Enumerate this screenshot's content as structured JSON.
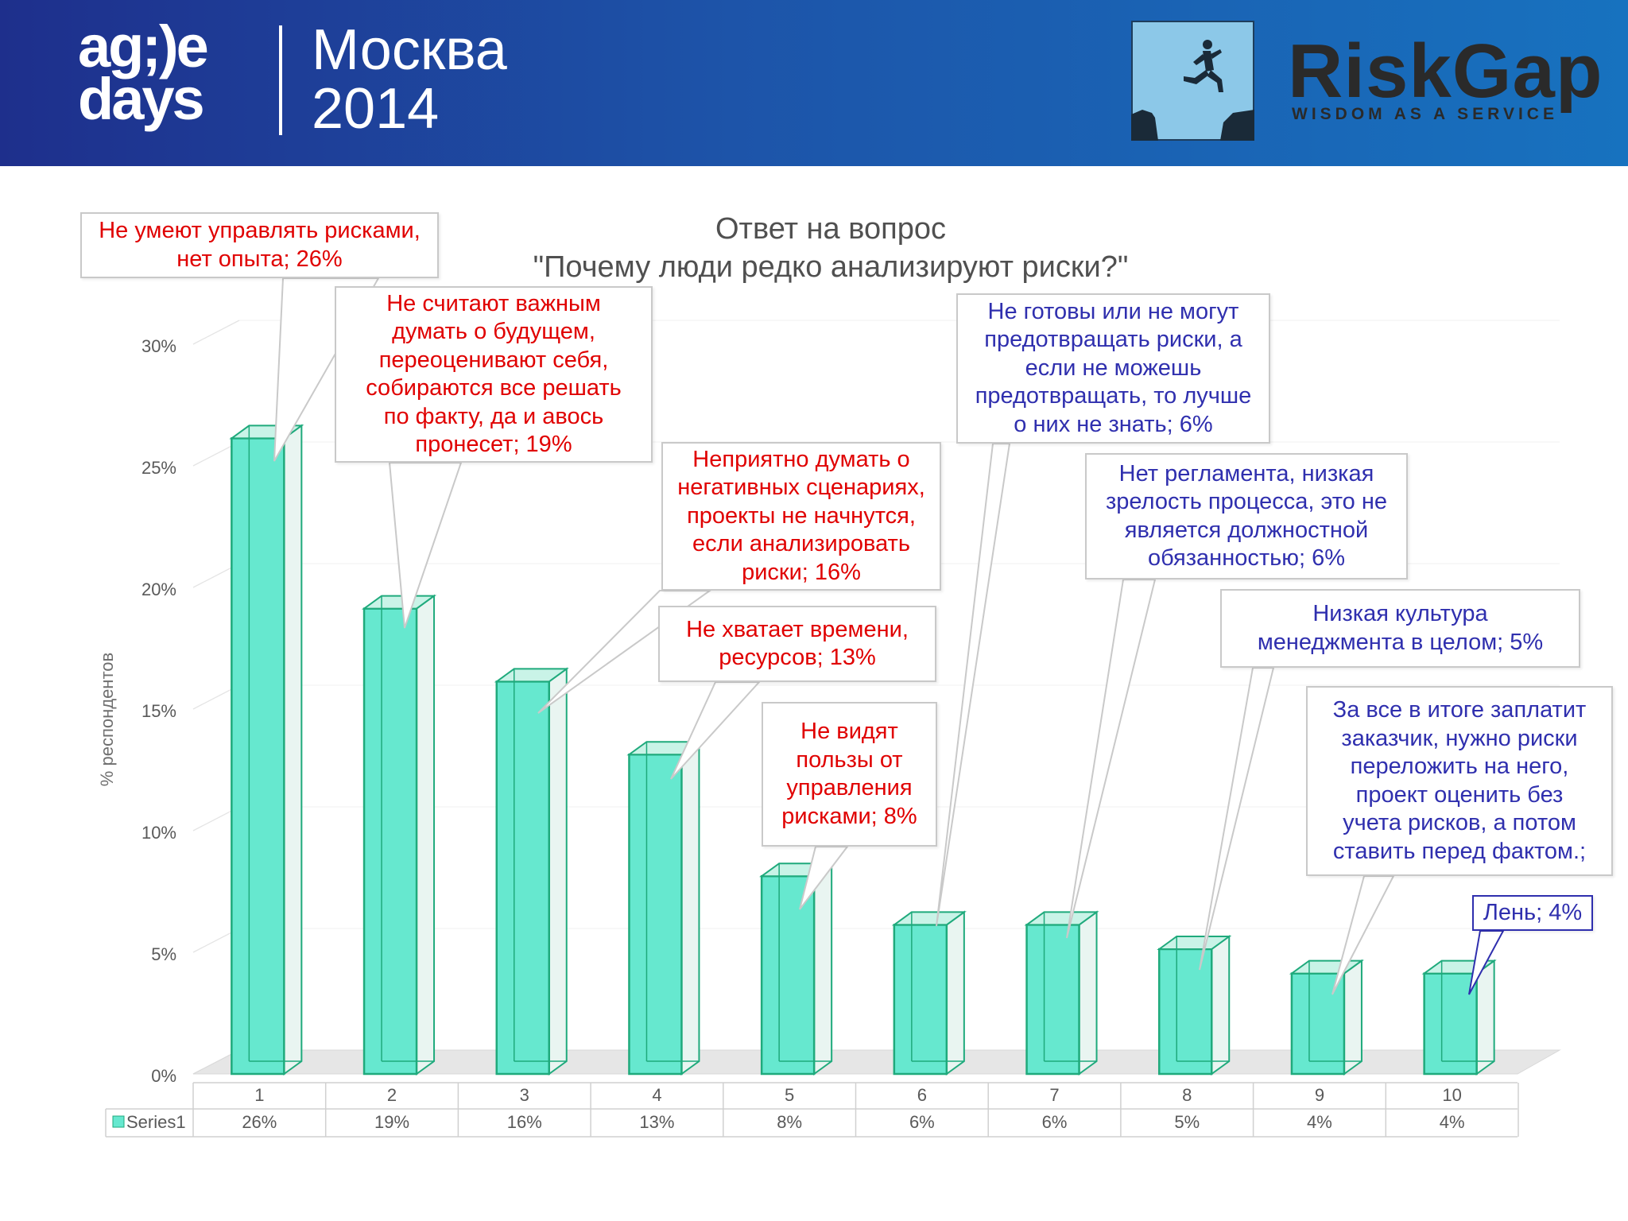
{
  "header": {
    "logo_line1": "ag;)e",
    "logo_line2": "days",
    "city": "Москва",
    "year": "2014",
    "brand_name": "RiskGap",
    "brand_tagline": "WISDOM AS A SERVICE"
  },
  "chart_data": {
    "type": "bar",
    "title_line1": "Ответ на вопрос",
    "title_line2": "\"Почему люди редко анализируют риски?\"",
    "ylabel": "% респондентов",
    "xlabel": "",
    "ylim": [
      0,
      0.3
    ],
    "yticks": [
      "0%",
      "5%",
      "10%",
      "15%",
      "20%",
      "25%",
      "30%"
    ],
    "grid": true,
    "categories": [
      "1",
      "2",
      "3",
      "4",
      "5",
      "6",
      "7",
      "8",
      "9",
      "10"
    ],
    "series": [
      {
        "name": "Series1",
        "values": [
          0.26,
          0.19,
          0.16,
          0.13,
          0.08,
          0.06,
          0.06,
          0.05,
          0.04,
          0.04
        ],
        "labels": [
          "26%",
          "19%",
          "16%",
          "13%",
          "8%",
          "6%",
          "6%",
          "5%",
          "4%",
          "4%"
        ],
        "color": "#66e8cf"
      }
    ],
    "annotations": [
      {
        "lines": [
          "Не умеют управлять рисками,",
          "нет опыта; 26%"
        ],
        "color": "red"
      },
      {
        "lines": [
          "Не считают важным",
          "думать о будущем,",
          "переоценивают себя,",
          "собираются все решать",
          "по факту, да и авось",
          "пронесет; 19%"
        ],
        "color": "red"
      },
      {
        "lines": [
          "Неприятно думать о",
          "негативных сценариях,",
          "проекты не начнутся,",
          "если анализировать",
          "риски; 16%"
        ],
        "color": "red"
      },
      {
        "lines": [
          "Не хватает времени,",
          "ресурсов; 13%"
        ],
        "color": "red"
      },
      {
        "lines": [
          "Не видят",
          "пользы от",
          "управления",
          "рисками; 8%"
        ],
        "color": "red"
      },
      {
        "lines": [
          "Не готовы или не могут",
          "предотвращать риски, а",
          "если не можешь",
          "предотвращать, то лучше",
          "о них не знать; 6%"
        ],
        "color": "blue"
      },
      {
        "lines": [
          "Нет регламента, низкая",
          "зрелость процесса, это не",
          "является должностной",
          "обязанностью; 6%"
        ],
        "color": "blue"
      },
      {
        "lines": [
          "Низкая культура",
          "менеджмента в целом; 5%"
        ],
        "color": "blue"
      },
      {
        "lines": [
          "За все в итоге заплатит",
          "заказчик, нужно риски",
          "переложить на него,",
          "проект оценить без",
          "учета рисков, а потом",
          "ставить перед фактом.;"
        ],
        "color": "blue"
      },
      {
        "lines": [
          "Лень; 4%"
        ],
        "color": "blue"
      }
    ]
  }
}
